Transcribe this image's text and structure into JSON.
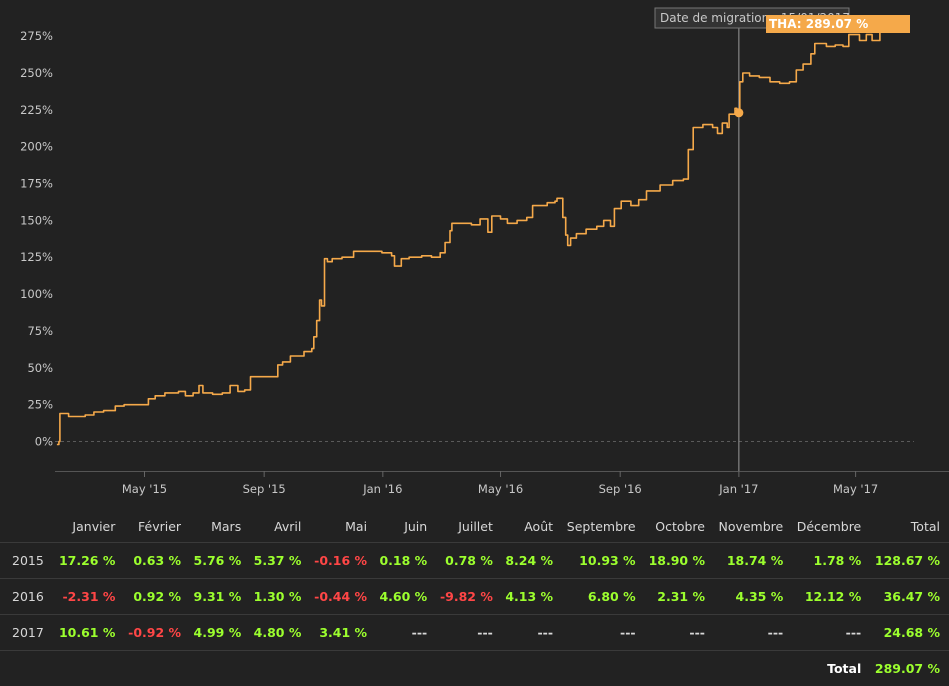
{
  "colors": {
    "line": "#f5a94a",
    "positive": "#9cff2e",
    "negative": "#ff4646",
    "background": "#222222",
    "grid": "#555555"
  },
  "chart_data": {
    "type": "line",
    "title": "",
    "xlabel": "",
    "ylabel": "",
    "y_unit": "%",
    "ylim": [
      -20,
      290
    ],
    "xlim": [
      "2015-01-29",
      "2017-08-05"
    ],
    "y_ticks": [
      "0%",
      "25%",
      "50%",
      "75%",
      "100%",
      "125%",
      "150%",
      "175%",
      "200%",
      "225%",
      "250%",
      "275%"
    ],
    "x_ticks": [
      {
        "date": "2015-05-01",
        "label": "May '15"
      },
      {
        "date": "2015-09-01",
        "label": "Sep '15"
      },
      {
        "date": "2016-01-01",
        "label": "Jan '16"
      },
      {
        "date": "2016-05-01",
        "label": "May '16"
      },
      {
        "date": "2016-09-01",
        "label": "Sep '16"
      },
      {
        "date": "2017-01-01",
        "label": "Jan '17"
      },
      {
        "date": "2017-05-01",
        "label": "May '17"
      }
    ],
    "grid": false,
    "zero_line": "dashed",
    "series": [
      {
        "name": "THA",
        "points": [
          [
            "2015-01-31",
            -2
          ],
          [
            "2015-02-02",
            0
          ],
          [
            "2015-02-03",
            19
          ],
          [
            "2015-02-12",
            17
          ],
          [
            "2015-03-01",
            18
          ],
          [
            "2015-03-10",
            20
          ],
          [
            "2015-03-20",
            21
          ],
          [
            "2015-04-01",
            24
          ],
          [
            "2015-04-10",
            25
          ],
          [
            "2015-04-30",
            25
          ],
          [
            "2015-05-05",
            29
          ],
          [
            "2015-05-12",
            31
          ],
          [
            "2015-05-22",
            33
          ],
          [
            "2015-06-05",
            34
          ],
          [
            "2015-06-12",
            31
          ],
          [
            "2015-06-20",
            33
          ],
          [
            "2015-06-26",
            38
          ],
          [
            "2015-06-30",
            33
          ],
          [
            "2015-07-10",
            32
          ],
          [
            "2015-07-20",
            33
          ],
          [
            "2015-07-28",
            38
          ],
          [
            "2015-08-05",
            34
          ],
          [
            "2015-08-12",
            35
          ],
          [
            "2015-08-18",
            44
          ],
          [
            "2015-09-01",
            44
          ],
          [
            "2015-09-10",
            44
          ],
          [
            "2015-09-15",
            52
          ],
          [
            "2015-09-20",
            54
          ],
          [
            "2015-09-28",
            58
          ],
          [
            "2015-10-05",
            58
          ],
          [
            "2015-10-12",
            61
          ],
          [
            "2015-10-20",
            63
          ],
          [
            "2015-10-22",
            71
          ],
          [
            "2015-10-25",
            82
          ],
          [
            "2015-10-28",
            96
          ],
          [
            "2015-10-30",
            92
          ],
          [
            "2015-11-02",
            124
          ],
          [
            "2015-11-05",
            122
          ],
          [
            "2015-11-10",
            124
          ],
          [
            "2015-11-20",
            125
          ],
          [
            "2015-11-28",
            125
          ],
          [
            "2015-12-02",
            129
          ],
          [
            "2015-12-10",
            129
          ],
          [
            "2015-12-31",
            128
          ],
          [
            "2016-01-05",
            128
          ],
          [
            "2016-01-10",
            126
          ],
          [
            "2016-01-13",
            119
          ],
          [
            "2016-01-20",
            124
          ],
          [
            "2016-01-28",
            125
          ],
          [
            "2016-02-10",
            126
          ],
          [
            "2016-02-20",
            125
          ],
          [
            "2016-02-29",
            128
          ],
          [
            "2016-03-05",
            135
          ],
          [
            "2016-03-10",
            143
          ],
          [
            "2016-03-12",
            148
          ],
          [
            "2016-03-25",
            148
          ],
          [
            "2016-04-01",
            147
          ],
          [
            "2016-04-10",
            151
          ],
          [
            "2016-04-18",
            142
          ],
          [
            "2016-04-22",
            153
          ],
          [
            "2016-05-01",
            151
          ],
          [
            "2016-05-08",
            148
          ],
          [
            "2016-05-18",
            150
          ],
          [
            "2016-05-28",
            152
          ],
          [
            "2016-06-03",
            160
          ],
          [
            "2016-06-18",
            162
          ],
          [
            "2016-06-26",
            163
          ],
          [
            "2016-06-28",
            165
          ],
          [
            "2016-07-04",
            152
          ],
          [
            "2016-07-07",
            140
          ],
          [
            "2016-07-09",
            133
          ],
          [
            "2016-07-12",
            138
          ],
          [
            "2016-07-18",
            141
          ],
          [
            "2016-07-28",
            144
          ],
          [
            "2016-08-08",
            146
          ],
          [
            "2016-08-15",
            150
          ],
          [
            "2016-08-22",
            146
          ],
          [
            "2016-08-26",
            158
          ],
          [
            "2016-09-02",
            163
          ],
          [
            "2016-09-12",
            160
          ],
          [
            "2016-09-20",
            164
          ],
          [
            "2016-09-28",
            170
          ],
          [
            "2016-10-12",
            174
          ],
          [
            "2016-10-25",
            177
          ],
          [
            "2016-11-05",
            178
          ],
          [
            "2016-11-10",
            198
          ],
          [
            "2016-11-15",
            213
          ],
          [
            "2016-11-25",
            215
          ],
          [
            "2016-12-05",
            213
          ],
          [
            "2016-12-10",
            209
          ],
          [
            "2016-12-15",
            216
          ],
          [
            "2016-12-20",
            213
          ],
          [
            "2016-12-22",
            222
          ],
          [
            "2016-12-28",
            226
          ],
          [
            "2016-12-30",
            222
          ],
          [
            "2017-01-02",
            244
          ],
          [
            "2017-01-05",
            250
          ],
          [
            "2017-01-12",
            248
          ],
          [
            "2017-01-22",
            247
          ],
          [
            "2017-02-02",
            244
          ],
          [
            "2017-02-12",
            243
          ],
          [
            "2017-02-22",
            244
          ],
          [
            "2017-03-01",
            252
          ],
          [
            "2017-03-08",
            256
          ],
          [
            "2017-03-16",
            263
          ],
          [
            "2017-03-20",
            270
          ],
          [
            "2017-04-01",
            268
          ],
          [
            "2017-04-10",
            269
          ],
          [
            "2017-04-18",
            268
          ],
          [
            "2017-04-24",
            276
          ],
          [
            "2017-05-05",
            272
          ],
          [
            "2017-05-12",
            276
          ],
          [
            "2017-05-18",
            272
          ],
          [
            "2017-05-26",
            278
          ],
          [
            "2017-05-30",
            284
          ],
          [
            "2017-06-04",
            289.07
          ]
        ]
      }
    ],
    "annotations": [
      {
        "type": "vertical-line",
        "date": "2017-01-01",
        "label": "Date de migration : 15/01/2017",
        "marker_value": 223
      }
    ],
    "tooltip": {
      "label": "THA: 289.07 %"
    }
  },
  "table": {
    "headers": [
      "Janvier",
      "Février",
      "Mars",
      "Avril",
      "Mai",
      "Juin",
      "Juillet",
      "Août",
      "Septembre",
      "Octobre",
      "Novembre",
      "Décembre",
      "Total"
    ],
    "rows": [
      {
        "year": "2015",
        "values": [
          "17.26 %",
          "0.63 %",
          "5.76 %",
          "5.37 %",
          "-0.16 %",
          "0.18 %",
          "0.78 %",
          "8.24 %",
          "10.93 %",
          "18.90 %",
          "18.74 %",
          "1.78 %",
          "128.67 %"
        ]
      },
      {
        "year": "2016",
        "values": [
          "-2.31 %",
          "0.92 %",
          "9.31 %",
          "1.30 %",
          "-0.44 %",
          "4.60 %",
          "-9.82 %",
          "4.13 %",
          "6.80 %",
          "2.31 %",
          "4.35 %",
          "12.12 %",
          "36.47 %"
        ]
      },
      {
        "year": "2017",
        "values": [
          "10.61 %",
          "-0.92 %",
          "4.99 %",
          "4.80 %",
          "3.41 %",
          "---",
          "---",
          "---",
          "---",
          "---",
          "---",
          "---",
          "24.68 %"
        ]
      }
    ],
    "total_label": "Total",
    "total_value": "289.07 %"
  }
}
